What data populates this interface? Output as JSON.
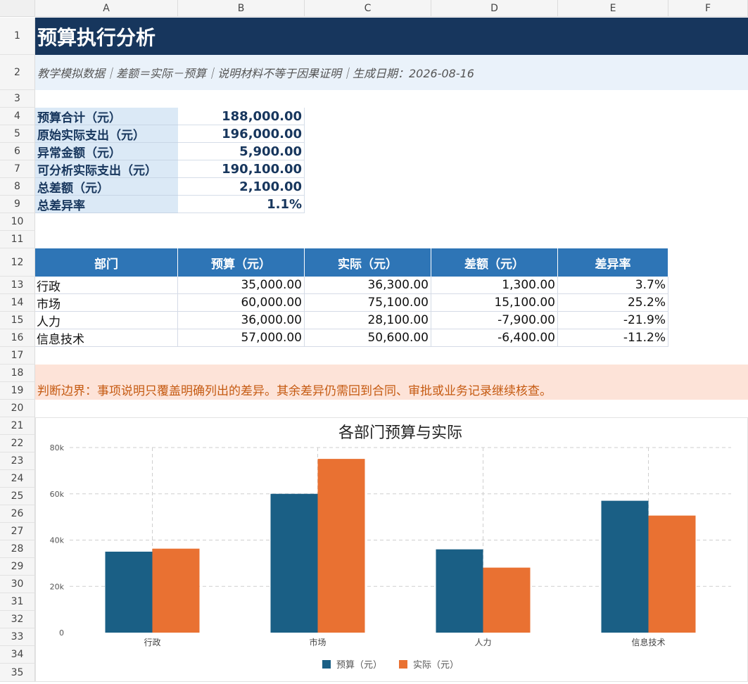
{
  "columns": [
    "A",
    "B",
    "C",
    "D",
    "E",
    "F"
  ],
  "rows": [
    "1",
    "2",
    "3",
    "4",
    "5",
    "6",
    "7",
    "8",
    "9",
    "10",
    "11",
    "12",
    "13",
    "14",
    "15",
    "16",
    "17",
    "18",
    "19",
    "20",
    "21",
    "22",
    "23",
    "24",
    "25",
    "26",
    "27",
    "28",
    "29",
    "30",
    "31",
    "32",
    "33",
    "34",
    "35"
  ],
  "title": "预算执行分析",
  "subtitle": "教学模拟数据｜差额＝实际－预算｜说明材料不等于因果证明｜生成日期：2026-08-16",
  "summary": [
    {
      "label": "预算合计（元）",
      "value": "188,000.00"
    },
    {
      "label": "原始实际支出（元）",
      "value": "196,000.00"
    },
    {
      "label": "异常金额（元）",
      "value": "5,900.00"
    },
    {
      "label": "可分析实际支出（元）",
      "value": "190,100.00"
    },
    {
      "label": "总差额（元）",
      "value": "2,100.00"
    },
    {
      "label": "总差异率",
      "value": "1.1%"
    }
  ],
  "table": {
    "headers": [
      "部门",
      "预算（元）",
      "实际（元）",
      "差额（元）",
      "差异率"
    ],
    "rows": [
      [
        "行政",
        "35,000.00",
        "36,300.00",
        "1,300.00",
        "3.7%"
      ],
      [
        "市场",
        "60,000.00",
        "75,100.00",
        "15,100.00",
        "25.2%"
      ],
      [
        "人力",
        "36,000.00",
        "28,100.00",
        "-7,900.00",
        "-21.9%"
      ],
      [
        "信息技术",
        "57,000.00",
        "50,600.00",
        "-6,400.00",
        "-11.2%"
      ]
    ]
  },
  "note": "判断边界：事项说明只覆盖明确列出的差异。其余差异仍需回到合同、审批或业务记录继续核查。",
  "chart_data": {
    "type": "bar",
    "title": "各部门预算与实际",
    "categories": [
      "行政",
      "市场",
      "人力",
      "信息技术"
    ],
    "series": [
      {
        "name": "预算（元）",
        "values": [
          35000,
          60000,
          36000,
          57000
        ],
        "color": "#1a5f85"
      },
      {
        "name": "实际（元）",
        "values": [
          36300,
          75100,
          28100,
          50600
        ],
        "color": "#e97132"
      }
    ],
    "ylim": [
      0,
      80000
    ],
    "yticks": [
      0,
      20000,
      40000,
      60000,
      80000
    ],
    "ytick_labels": [
      "0",
      "20k",
      "40k",
      "60k",
      "80k"
    ],
    "grid": true,
    "legend": "bottom"
  }
}
